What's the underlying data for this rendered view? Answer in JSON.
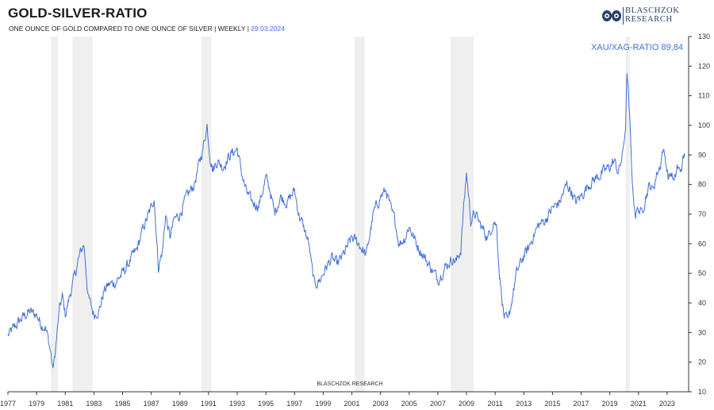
{
  "header": {
    "title": "GOLD-SILVER-RATIO",
    "subtitle": "ONE OUNCE OF GOLD COMPARED TO ONE OUNCE OF SILVER | WEEKLY | ",
    "date": "29.03.2024"
  },
  "logo": {
    "line1": "BLASCHZOK",
    "line2": "RESEARCH"
  },
  "watermark": "BLASCHZOK     RESEARCH",
  "colors": {
    "line": "#3f6fd8",
    "shade": "#efefef",
    "axis": "#333333"
  },
  "chart_data": {
    "type": "line",
    "title": "GOLD-SILVER-RATIO",
    "series_label": "XAU/XAG-RATIO 89,84",
    "xlim": [
      1977,
      2024.5
    ],
    "ylim": [
      10,
      130
    ],
    "x_ticks": [
      "1977",
      "1979",
      "1981",
      "1983",
      "1985",
      "1987",
      "1989",
      "1991",
      "1993",
      "1995",
      "1997",
      "1999",
      "2001",
      "2003",
      "2005",
      "2007",
      "2009",
      "2011",
      "2013",
      "2015",
      "2017",
      "2019",
      "2021",
      "2023"
    ],
    "y_ticks": [
      "10",
      "20",
      "30",
      "40",
      "50",
      "60",
      "70",
      "80",
      "90",
      "100",
      "110",
      "120",
      "130"
    ],
    "recessions": [
      [
        1980.0,
        1980.5
      ],
      [
        1981.5,
        1982.9
      ],
      [
        1990.5,
        1991.2
      ],
      [
        2001.2,
        2001.9
      ],
      [
        2007.9,
        2009.5
      ],
      [
        2020.1,
        2020.4
      ]
    ],
    "series": [
      {
        "name": "XAU/XAG-RATIO",
        "x": [
          1977.0,
          1977.5,
          1978.0,
          1978.5,
          1979.0,
          1979.3,
          1979.6,
          1979.8,
          1980.0,
          1980.1,
          1980.2,
          1980.4,
          1980.6,
          1980.8,
          1981.0,
          1981.2,
          1981.5,
          1981.8,
          1982.0,
          1982.3,
          1982.6,
          1983.0,
          1983.4,
          1983.7,
          1984.0,
          1984.5,
          1985.0,
          1985.5,
          1986.0,
          1986.5,
          1987.0,
          1987.2,
          1987.5,
          1987.8,
          1988.0,
          1988.3,
          1988.6,
          1989.0,
          1989.5,
          1990.0,
          1990.3,
          1990.6,
          1990.9,
          1991.1,
          1991.3,
          1991.6,
          1992.0,
          1992.5,
          1993.0,
          1993.3,
          1993.6,
          1994.0,
          1994.5,
          1995.0,
          1995.3,
          1995.6,
          1996.0,
          1996.5,
          1997.0,
          1997.3,
          1997.6,
          1998.0,
          1998.2,
          1998.4,
          1998.8,
          1999.2,
          1999.6,
          2000.0,
          2000.5,
          2001.0,
          2001.5,
          2002.0,
          2002.5,
          2003.0,
          2003.4,
          2003.8,
          2004.0,
          2004.3,
          2004.7,
          2005.0,
          2005.5,
          2006.0,
          2006.5,
          2007.0,
          2007.5,
          2008.0,
          2008.3,
          2008.6,
          2008.8,
          2009.0,
          2009.3,
          2009.6,
          2010.0,
          2010.5,
          2010.9,
          2011.1,
          2011.3,
          2011.6,
          2011.9,
          2012.2,
          2012.5,
          2013.0,
          2013.3,
          2013.6,
          2014.0,
          2014.5,
          2015.0,
          2015.5,
          2016.0,
          2016.3,
          2016.6,
          2017.0,
          2017.5,
          2018.0,
          2018.5,
          2019.0,
          2019.3,
          2019.6,
          2019.9,
          2020.1,
          2020.2,
          2020.3,
          2020.45,
          2020.6,
          2020.8,
          2021.0,
          2021.2,
          2021.5,
          2021.8,
          2022.0,
          2022.3,
          2022.5,
          2022.7,
          2022.9,
          2023.1,
          2023.3,
          2023.5,
          2023.7,
          2023.9,
          2024.1,
          2024.24
        ],
        "values": [
          29,
          32,
          35,
          37,
          36,
          33,
          32,
          28,
          23,
          18,
          19,
          28,
          38,
          42,
          36,
          40,
          46,
          52,
          56,
          60,
          42,
          36,
          38,
          44,
          46,
          47,
          50,
          54,
          58,
          66,
          72,
          76,
          52,
          58,
          70,
          62,
          68,
          70,
          76,
          80,
          86,
          92,
          100,
          90,
          85,
          88,
          86,
          90,
          92,
          84,
          78,
          74,
          73,
          82,
          78,
          70,
          76,
          74,
          78,
          70,
          66,
          60,
          52,
          46,
          48,
          52,
          55,
          53,
          57,
          62,
          60,
          56,
          70,
          76,
          78,
          70,
          68,
          60,
          62,
          66,
          60,
          56,
          52,
          48,
          52,
          55,
          54,
          58,
          72,
          84,
          68,
          70,
          66,
          62,
          68,
          66,
          50,
          36,
          33,
          42,
          50,
          56,
          58,
          62,
          66,
          68,
          72,
          74,
          80,
          78,
          74,
          76,
          80,
          82,
          84,
          86,
          88,
          84,
          90,
          100,
          118,
          110,
          95,
          78,
          70,
          72,
          70,
          76,
          80,
          78,
          84,
          86,
          92,
          88,
          82,
          84,
          80,
          86,
          84,
          88,
          89.84
        ]
      }
    ]
  }
}
